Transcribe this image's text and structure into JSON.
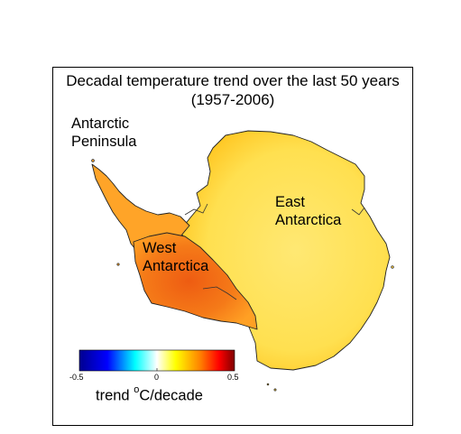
{
  "title": {
    "line1": "Decadal temperature trend over the last 50 years",
    "line2": "(1957-2006)"
  },
  "regions": {
    "peninsula": [
      "Antarctic",
      "Peninsula"
    ],
    "east": [
      "East",
      "Antarctica"
    ],
    "west": [
      "West",
      "Antarctica"
    ]
  },
  "colorbar": {
    "ticks": [
      "-0.5",
      "0",
      "0.5"
    ],
    "label_prefix": "trend ",
    "label_unit_sup": "o",
    "label_unit": "C/decade",
    "range": [
      -0.5,
      0.5
    ],
    "colormap": [
      "#00008f",
      "#0000ff",
      "#00ffff",
      "#ffffff",
      "#ffff00",
      "#ff8000",
      "#ff0000",
      "#800000"
    ]
  },
  "map_colors": {
    "east": "#ffe15a",
    "east_edge": "#ffc81e",
    "west": "#ff8a1c",
    "west_core": "#f06416",
    "peninsula": "#ffaa28"
  }
}
